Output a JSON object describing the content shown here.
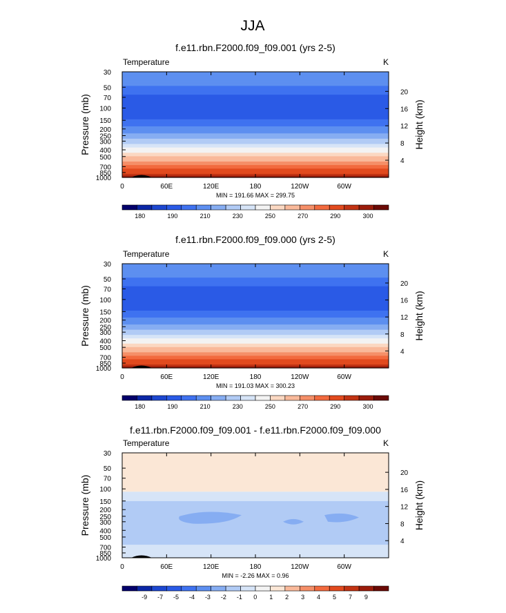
{
  "page_title": "JJA",
  "x_ticks": [
    "0",
    "60E",
    "120E",
    "180",
    "120W",
    "60W"
  ],
  "y_ticks": [
    "30",
    "50",
    "70",
    "100",
    "150",
    "200",
    "250",
    "300",
    "400",
    "500",
    "700",
    "850",
    "1000"
  ],
  "y_ticks_right": [
    "20",
    "16",
    "12",
    "8",
    "4"
  ],
  "y_label_left": "Pressure (mb)",
  "y_label_right": "Height (km)",
  "chart_data": [
    {
      "type": "heatmap",
      "title": "f.e11.rbn.F2000.f09_f09.001 (yrs 2-5)",
      "variable": "Temperature",
      "units": "K",
      "stats": "MIN = 191.66  MAX = 299.75",
      "min": 191.66,
      "max": 299.75,
      "xlabel": "",
      "ylabel": "Pressure (mb)",
      "ylabel_right": "Height (km)",
      "x_ticks": [
        "0",
        "60E",
        "120E",
        "180",
        "120W",
        "60W"
      ],
      "y_ticks": [
        "30",
        "50",
        "70",
        "100",
        "150",
        "200",
        "250",
        "300",
        "400",
        "500",
        "700",
        "850",
        "1000"
      ],
      "ylim": [
        1000,
        30
      ],
      "y_scale": "log",
      "colorbar_labels": [
        "180",
        "190",
        "210",
        "230",
        "250",
        "270",
        "290",
        "300"
      ],
      "colorbar_colors": [
        "#04006b",
        "#0b27a6",
        "#1d47d0",
        "#2a5ae6",
        "#3f72f0",
        "#5d8ff0",
        "#86adf2",
        "#b1cbf5",
        "#d6e4f7",
        "#f3f3f3",
        "#fbd8c2",
        "#f9b99a",
        "#f58f68",
        "#f26a3e",
        "#e24a1e",
        "#c23313",
        "#9b1c0b",
        "#6b0a06"
      ],
      "levels": [
        {
          "p": 30,
          "t": 221
        },
        {
          "p": 50,
          "t": 214
        },
        {
          "p": 70,
          "t": 206
        },
        {
          "p": 100,
          "t": 203
        },
        {
          "p": 150,
          "t": 208
        },
        {
          "p": 200,
          "t": 217
        },
        {
          "p": 250,
          "t": 225
        },
        {
          "p": 300,
          "t": 232
        },
        {
          "p": 400,
          "t": 245
        },
        {
          "p": 500,
          "t": 256
        },
        {
          "p": 700,
          "t": 272
        },
        {
          "p": 850,
          "t": 283
        },
        {
          "p": 1000,
          "t": 294
        }
      ]
    },
    {
      "type": "heatmap",
      "title": "f.e11.rbn.F2000.f09_f09.000 (yrs 2-5)",
      "variable": "Temperature",
      "units": "K",
      "stats": "MIN = 191.03  MAX = 300.23",
      "min": 191.03,
      "max": 300.23,
      "xlabel": "",
      "ylabel": "Pressure (mb)",
      "ylabel_right": "Height (km)",
      "x_ticks": [
        "0",
        "60E",
        "120E",
        "180",
        "120W",
        "60W"
      ],
      "y_ticks": [
        "30",
        "50",
        "70",
        "100",
        "150",
        "200",
        "250",
        "300",
        "400",
        "500",
        "700",
        "850",
        "1000"
      ],
      "ylim": [
        1000,
        30
      ],
      "y_scale": "log",
      "colorbar_labels": [
        "180",
        "190",
        "210",
        "230",
        "250",
        "270",
        "290",
        "300"
      ],
      "colorbar_colors": [
        "#04006b",
        "#0b27a6",
        "#1d47d0",
        "#2a5ae6",
        "#3f72f0",
        "#5d8ff0",
        "#86adf2",
        "#b1cbf5",
        "#d6e4f7",
        "#f3f3f3",
        "#fbd8c2",
        "#f9b99a",
        "#f58f68",
        "#f26a3e",
        "#e24a1e",
        "#c23313",
        "#9b1c0b",
        "#6b0a06"
      ],
      "levels": [
        {
          "p": 30,
          "t": 221
        },
        {
          "p": 50,
          "t": 214
        },
        {
          "p": 70,
          "t": 206
        },
        {
          "p": 100,
          "t": 203
        },
        {
          "p": 150,
          "t": 208
        },
        {
          "p": 200,
          "t": 217
        },
        {
          "p": 250,
          "t": 225
        },
        {
          "p": 300,
          "t": 232
        },
        {
          "p": 400,
          "t": 245
        },
        {
          "p": 500,
          "t": 256
        },
        {
          "p": 700,
          "t": 272
        },
        {
          "p": 850,
          "t": 283
        },
        {
          "p": 1000,
          "t": 294
        }
      ]
    },
    {
      "type": "heatmap",
      "title": "f.e11.rbn.F2000.f09_f09.001 - f.e11.rbn.F2000.f09_f09.000",
      "variable": "Temperature",
      "units": "K",
      "stats": "MIN =  -2.26  MAX =  0.96",
      "min": -2.26,
      "max": 0.96,
      "xlabel": "",
      "ylabel": "Pressure (mb)",
      "ylabel_right": "Height (km)",
      "x_ticks": [
        "0",
        "60E",
        "120E",
        "180",
        "120W",
        "60W"
      ],
      "y_ticks": [
        "30",
        "50",
        "70",
        "100",
        "150",
        "200",
        "250",
        "300",
        "400",
        "500",
        "700",
        "850",
        "1000"
      ],
      "ylim": [
        1000,
        30
      ],
      "y_scale": "log",
      "colorbar_labels": [
        "-9",
        "-7",
        "-5",
        "-4",
        "-3",
        "-2",
        "-1",
        "0",
        "1",
        "2",
        "3",
        "4",
        "5",
        "7",
        "9"
      ],
      "colorbar_colors": [
        "#04006b",
        "#0b27a6",
        "#1d47d0",
        "#2a5ae6",
        "#3f72f0",
        "#5d8ff0",
        "#86adf2",
        "#b1cbf5",
        "#d6e4f7",
        "#f3f3f3",
        "#fbe7d6",
        "#f9b99a",
        "#f58f68",
        "#f26a3e",
        "#e24a1e",
        "#c23313",
        "#9b1c0b",
        "#6b0a06"
      ],
      "regions": [
        {
          "from_p": 30,
          "to_p": 110,
          "value": 0.5,
          "color": "#fbe7d6"
        },
        {
          "from_p": 110,
          "to_p": 150,
          "value": -0.5,
          "color": "#d6e4f7"
        },
        {
          "from_p": 150,
          "to_p": 650,
          "value": -1.5,
          "color": "#b1cbf5"
        },
        {
          "from_p": 650,
          "to_p": 1000,
          "value": -0.5,
          "color": "#d6e4f7"
        }
      ]
    }
  ]
}
